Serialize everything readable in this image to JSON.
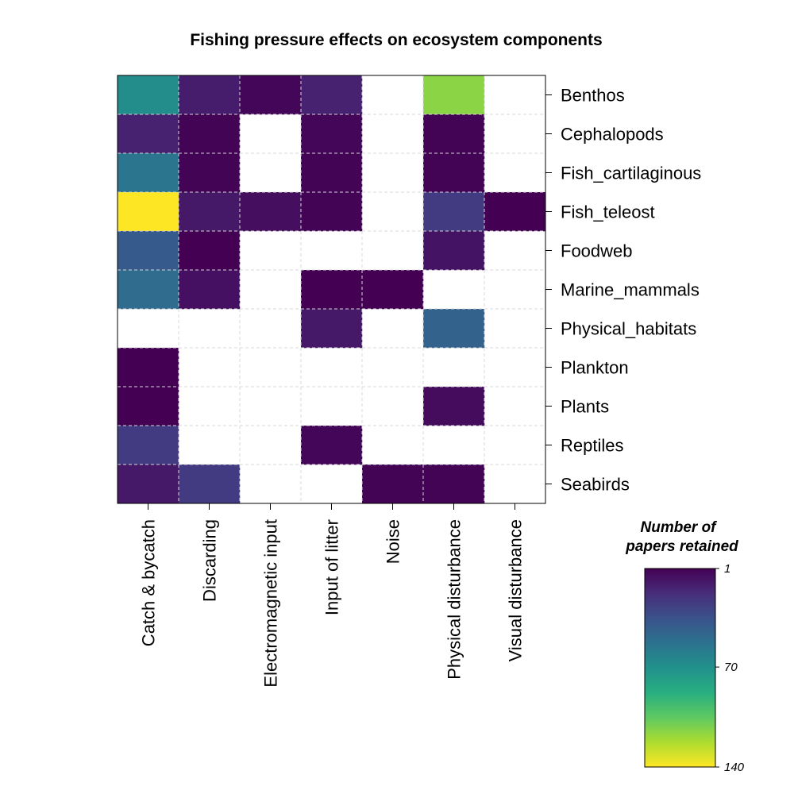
{
  "chart_data": {
    "type": "heatmap",
    "title": "Fishing pressure effects on ecosystem components",
    "x_categories": [
      "Catch & bycatch",
      "Discarding",
      "Electromagnetic input",
      "Input of litter",
      "Noise",
      "Physical disturbance",
      "Visual disturbance"
    ],
    "y_categories": [
      "Benthos",
      "Cephalopods",
      "Fish_cartilaginous",
      "Fish_teleost",
      "Foodweb",
      "Marine_mammals",
      "Physical_habitats",
      "Plankton",
      "Plants",
      "Reptiles",
      "Seabirds"
    ],
    "values": [
      [
        68,
        12,
        3,
        14,
        null,
        115,
        null
      ],
      [
        14,
        2,
        null,
        3,
        null,
        2,
        null
      ],
      [
        55,
        2,
        null,
        2,
        null,
        2,
        null
      ],
      [
        140,
        10,
        6,
        2,
        null,
        25,
        1
      ],
      [
        40,
        1,
        null,
        null,
        null,
        8,
        null
      ],
      [
        50,
        7,
        null,
        1,
        1,
        null,
        null
      ],
      [
        null,
        null,
        null,
        10,
        null,
        45,
        null
      ],
      [
        1,
        null,
        null,
        null,
        null,
        null,
        null
      ],
      [
        1,
        null,
        null,
        null,
        null,
        5,
        null
      ],
      [
        25,
        null,
        null,
        3,
        null,
        null,
        null
      ],
      [
        10,
        25,
        null,
        null,
        2,
        2,
        null
      ]
    ],
    "color_range": [
      1,
      140
    ],
    "colormap": "viridis-reversed",
    "grid": true,
    "legend": {
      "title_lines": [
        "Number of",
        "papers retained"
      ],
      "ticks": [
        1,
        70,
        140
      ],
      "placement": "bottom-right"
    },
    "y_axis_side": "right"
  }
}
